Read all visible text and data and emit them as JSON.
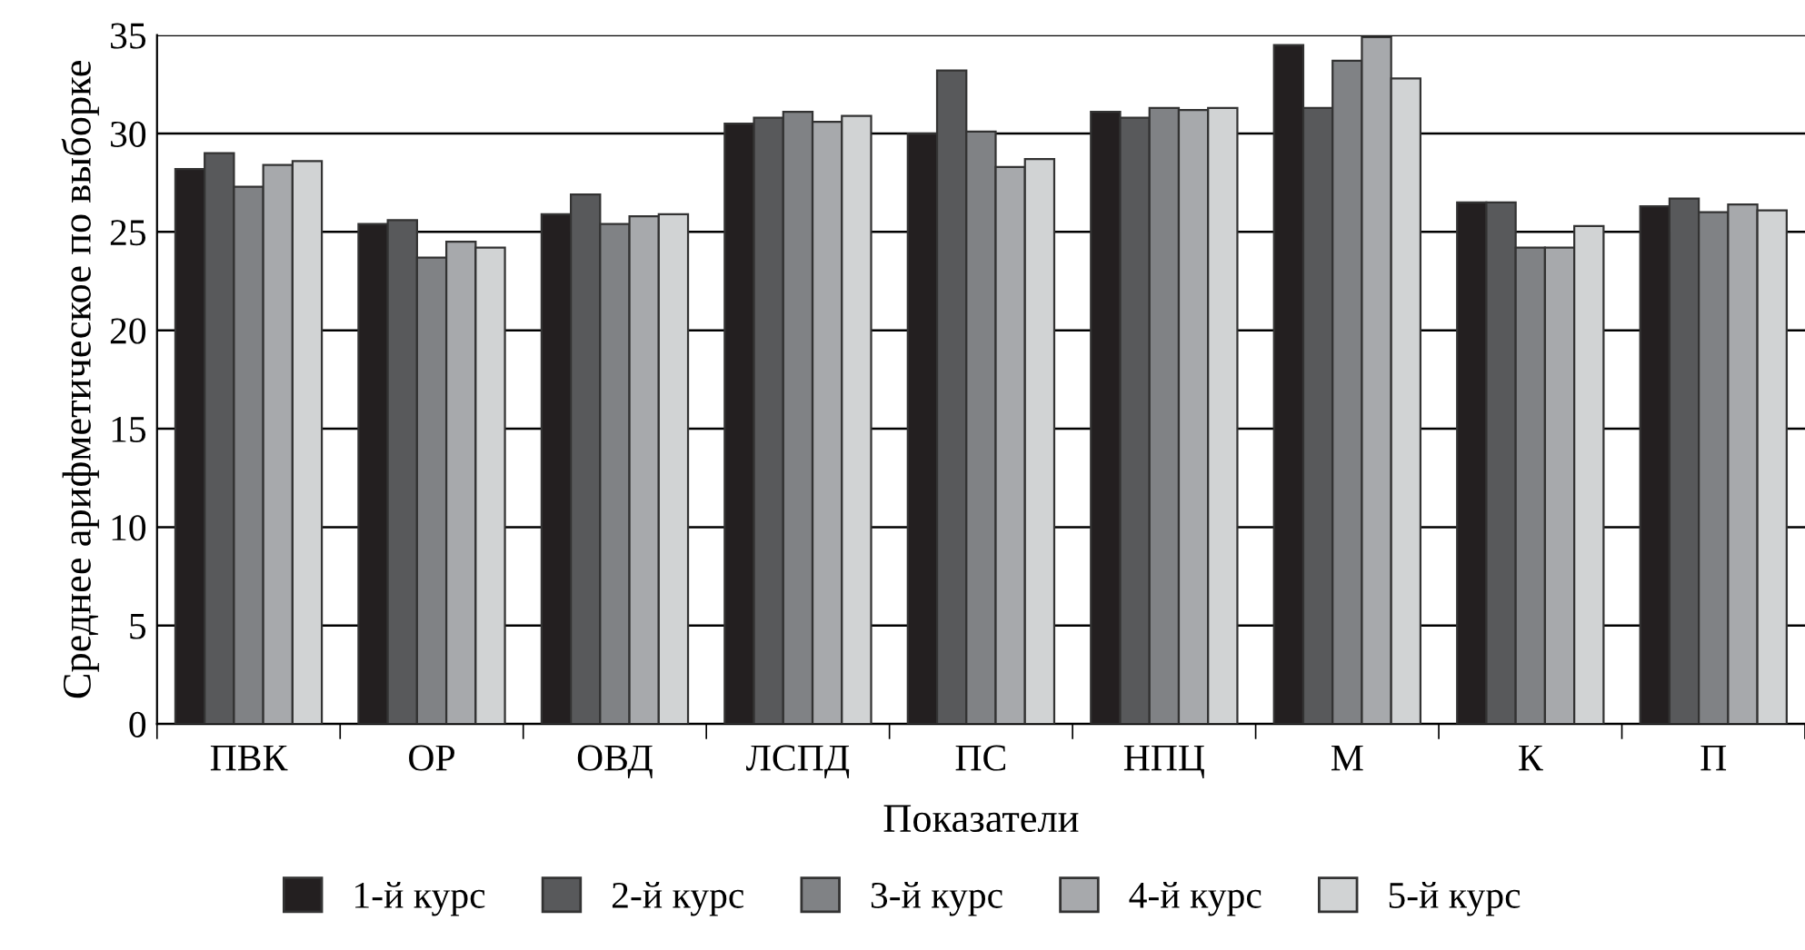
{
  "chart_data": {
    "type": "bar",
    "xlabel": "Показатели",
    "ylabel": "Среднее арифметическое по выборке",
    "categories": [
      "ПВК",
      "ОР",
      "ОВД",
      "ЛСПД",
      "ПС",
      "НПЦ",
      "М",
      "К",
      "П"
    ],
    "series": [
      {
        "name": "1-й курс",
        "color": "#231f20",
        "values": [
          28.2,
          25.4,
          25.9,
          30.5,
          30.0,
          31.1,
          34.5,
          26.5,
          26.3
        ]
      },
      {
        "name": "2-й курс",
        "color": "#58595b",
        "values": [
          29.0,
          25.6,
          26.9,
          30.8,
          33.2,
          30.8,
          31.3,
          26.5,
          26.7
        ]
      },
      {
        "name": "3-й курс",
        "color": "#808285",
        "values": [
          27.3,
          23.7,
          25.4,
          31.1,
          30.1,
          31.3,
          33.7,
          24.2,
          26.0
        ]
      },
      {
        "name": "4-й курс",
        "color": "#a7a9ac",
        "values": [
          28.4,
          24.5,
          25.8,
          30.6,
          28.3,
          31.2,
          34.9,
          24.2,
          26.4
        ]
      },
      {
        "name": "5-й курс",
        "color": "#d1d3d4",
        "values": [
          28.6,
          24.2,
          25.9,
          30.9,
          28.7,
          31.3,
          32.8,
          25.3,
          26.1
        ]
      }
    ],
    "ylim": [
      0,
      35
    ],
    "yticks": [
      0,
      5,
      10,
      15,
      20,
      25,
      30,
      35
    ],
    "grid": "y",
    "legend": "bottom"
  }
}
